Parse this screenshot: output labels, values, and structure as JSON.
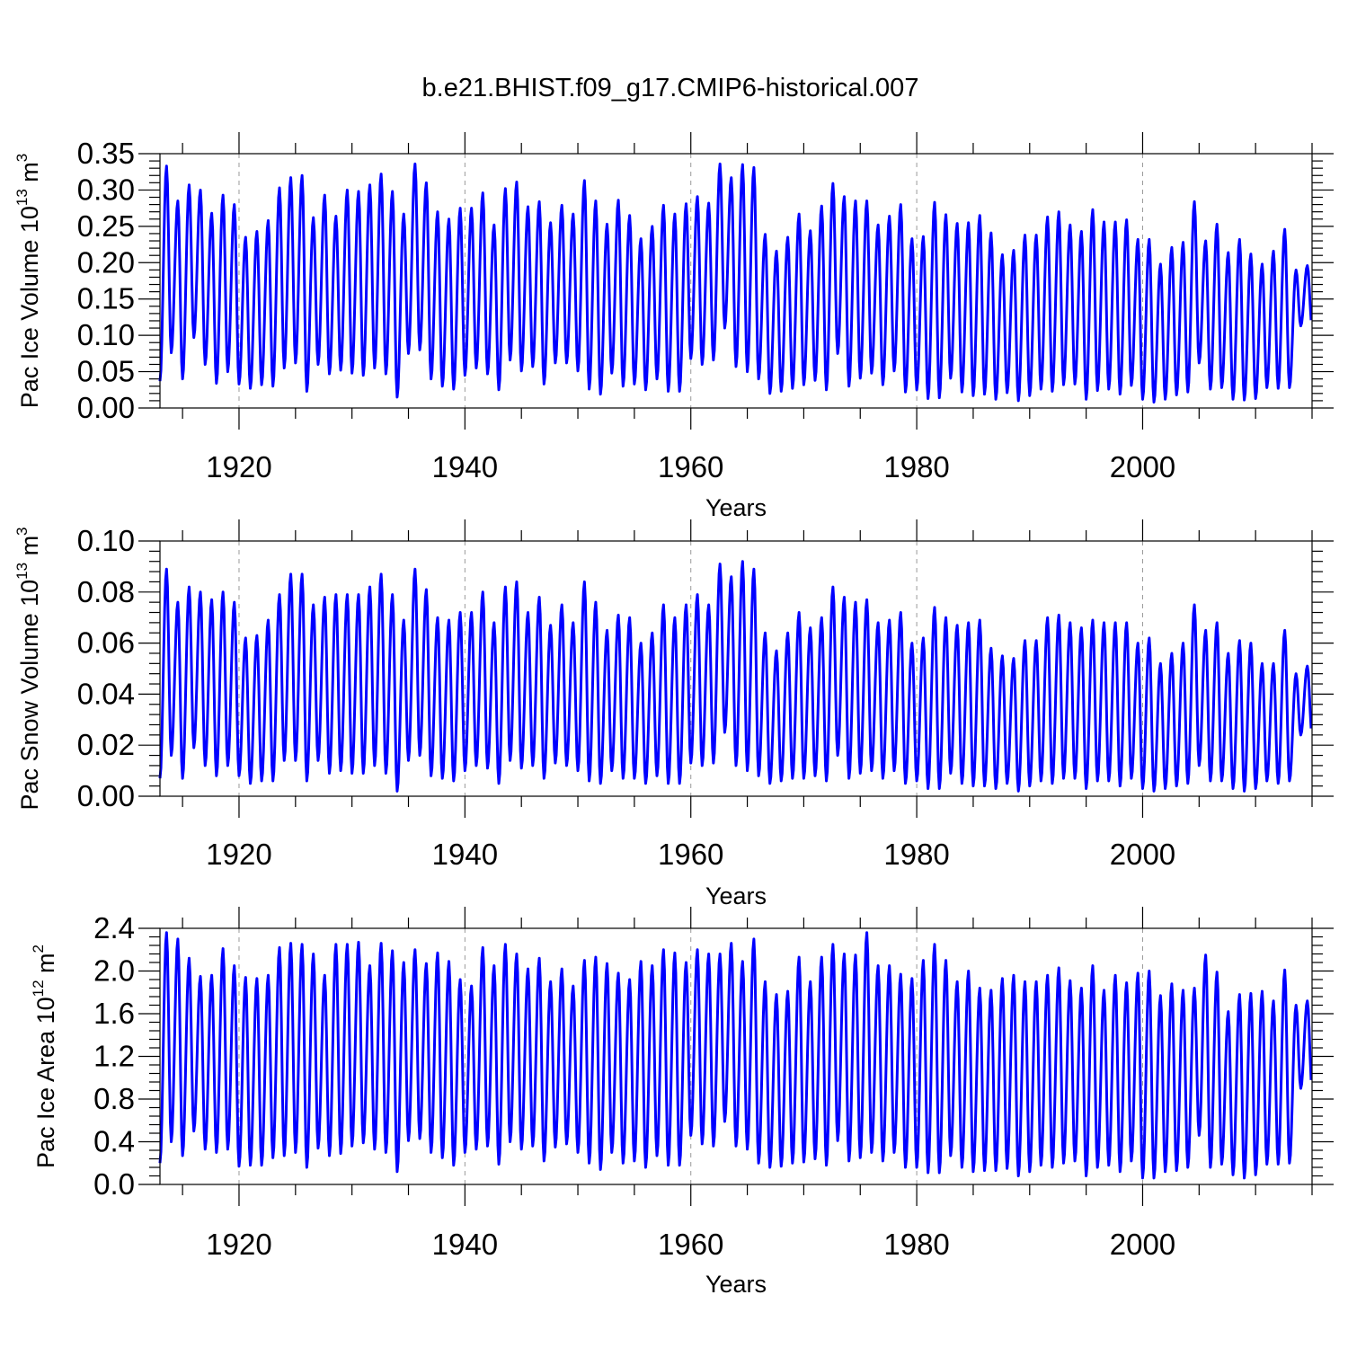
{
  "figure": {
    "title": "b.e21.BHIST.f09_g17.CMIP6-historical.007",
    "line_color": "#0000ff"
  },
  "chart_data": [
    {
      "type": "line",
      "xlabel": "Years",
      "ylabel_base": "Pac Ice Volume 10",
      "ylabel_exp": "13",
      "ylabel_unit": " m",
      "ylabel_unit_exp": "3",
      "xlim": [
        1913,
        2015
      ],
      "ylim": [
        0,
        0.35
      ],
      "xticks": [
        "1920",
        "1940",
        "1960",
        "1980",
        "2000"
      ],
      "yticks": [
        "0.00",
        "0.05",
        "0.10",
        "0.15",
        "0.20",
        "0.25",
        "0.30",
        "0.35"
      ],
      "grid": "dashed vertical at major x ticks",
      "series": [
        {
          "x": [
            1913,
            1914,
            1915,
            1916,
            1917,
            1918,
            1919,
            1920,
            1921,
            1922,
            1923,
            1924,
            1925,
            1926,
            1927,
            1928,
            1929,
            1930,
            1931,
            1932,
            1933,
            1934,
            1935,
            1936,
            1937,
            1938,
            1939,
            1940,
            1941,
            1942,
            1943,
            1944,
            1945,
            1946,
            1947,
            1948,
            1949,
            1950,
            1951,
            1952,
            1953,
            1954,
            1955,
            1956,
            1957,
            1958,
            1959,
            1960,
            1961,
            1962,
            1963,
            1964,
            1965,
            1966,
            1967,
            1968,
            1969,
            1970,
            1971,
            1972,
            1973,
            1974,
            1975,
            1976,
            1977,
            1978,
            1979,
            1980,
            1981,
            1982,
            1983,
            1984,
            1985,
            1986,
            1987,
            1988,
            1989,
            1990,
            1991,
            1992,
            1993,
            1994,
            1995,
            1996,
            1997,
            1998,
            1999,
            2000,
            2001,
            2002,
            2003,
            2004,
            2005,
            2006,
            2007,
            2008,
            2009,
            2010,
            2011,
            2012,
            2013,
            2014
          ],
          "max": [
            0.333,
            0.285,
            0.307,
            0.3,
            0.268,
            0.293,
            0.28,
            0.235,
            0.243,
            0.258,
            0.303,
            0.317,
            0.32,
            0.262,
            0.293,
            0.264,
            0.3,
            0.298,
            0.307,
            0.322,
            0.298,
            0.267,
            0.336,
            0.31,
            0.27,
            0.26,
            0.275,
            0.275,
            0.296,
            0.252,
            0.302,
            0.311,
            0.277,
            0.284,
            0.255,
            0.279,
            0.267,
            0.313,
            0.285,
            0.253,
            0.286,
            0.265,
            0.233,
            0.25,
            0.279,
            0.267,
            0.281,
            0.291,
            0.282,
            0.336,
            0.317,
            0.335,
            0.331,
            0.239,
            0.216,
            0.235,
            0.267,
            0.244,
            0.278,
            0.309,
            0.291,
            0.285,
            0.285,
            0.252,
            0.264,
            0.28,
            0.233,
            0.236,
            0.283,
            0.266,
            0.254,
            0.255,
            0.265,
            0.241,
            0.211,
            0.217,
            0.238,
            0.238,
            0.263,
            0.27,
            0.252,
            0.243,
            0.273,
            0.256,
            0.256,
            0.259,
            0.232,
            0.232,
            0.198,
            0.221,
            0.228,
            0.284,
            0.23,
            0.253,
            0.214,
            0.232,
            0.212,
            0.198,
            0.216,
            0.246,
            0.19,
            0.196
          ],
          "min": [
            0.037,
            0.076,
            0.04,
            0.097,
            0.06,
            0.034,
            0.05,
            0.033,
            0.027,
            0.032,
            0.03,
            0.055,
            0.062,
            0.023,
            0.06,
            0.047,
            0.052,
            0.048,
            0.045,
            0.055,
            0.047,
            0.015,
            0.075,
            0.08,
            0.04,
            0.03,
            0.026,
            0.045,
            0.055,
            0.047,
            0.025,
            0.066,
            0.051,
            0.057,
            0.033,
            0.062,
            0.062,
            0.051,
            0.026,
            0.019,
            0.048,
            0.03,
            0.033,
            0.025,
            0.04,
            0.023,
            0.023,
            0.068,
            0.06,
            0.066,
            0.11,
            0.057,
            0.05,
            0.04,
            0.02,
            0.023,
            0.027,
            0.032,
            0.038,
            0.025,
            0.075,
            0.03,
            0.041,
            0.048,
            0.032,
            0.051,
            0.022,
            0.025,
            0.013,
            0.014,
            0.041,
            0.022,
            0.017,
            0.019,
            0.012,
            0.021,
            0.01,
            0.017,
            0.026,
            0.023,
            0.032,
            0.033,
            0.012,
            0.024,
            0.026,
            0.019,
            0.031,
            0.012,
            0.008,
            0.012,
            0.018,
            0.022,
            0.062,
            0.026,
            0.028,
            0.012,
            0.011,
            0.013,
            0.028,
            0.027,
            0.028,
            0.113
          ]
        }
      ]
    },
    {
      "type": "line",
      "xlabel": "Years",
      "ylabel_base": "Pac Snow Volume 10",
      "ylabel_exp": "13",
      "ylabel_unit": " m",
      "ylabel_unit_exp": "3",
      "xlim": [
        1913,
        2015
      ],
      "ylim": [
        0,
        0.1
      ],
      "xticks": [
        "1920",
        "1940",
        "1960",
        "1980",
        "2000"
      ],
      "yticks": [
        "0.00",
        "0.02",
        "0.04",
        "0.06",
        "0.08",
        "0.10"
      ],
      "grid": "dashed vertical at major x ticks",
      "series": [
        {
          "x": [
            1913,
            1914,
            1915,
            1916,
            1917,
            1918,
            1919,
            1920,
            1921,
            1922,
            1923,
            1924,
            1925,
            1926,
            1927,
            1928,
            1929,
            1930,
            1931,
            1932,
            1933,
            1934,
            1935,
            1936,
            1937,
            1938,
            1939,
            1940,
            1941,
            1942,
            1943,
            1944,
            1945,
            1946,
            1947,
            1948,
            1949,
            1950,
            1951,
            1952,
            1953,
            1954,
            1955,
            1956,
            1957,
            1958,
            1959,
            1960,
            1961,
            1962,
            1963,
            1964,
            1965,
            1966,
            1967,
            1968,
            1969,
            1970,
            1971,
            1972,
            1973,
            1974,
            1975,
            1976,
            1977,
            1978,
            1979,
            1980,
            1981,
            1982,
            1983,
            1984,
            1985,
            1986,
            1987,
            1988,
            1989,
            1990,
            1991,
            1992,
            1993,
            1994,
            1995,
            1996,
            1997,
            1998,
            1999,
            2000,
            2001,
            2002,
            2003,
            2004,
            2005,
            2006,
            2007,
            2008,
            2009,
            2010,
            2011,
            2012,
            2013,
            2014
          ],
          "max": [
            0.089,
            0.076,
            0.082,
            0.08,
            0.077,
            0.08,
            0.076,
            0.062,
            0.063,
            0.069,
            0.079,
            0.087,
            0.087,
            0.075,
            0.078,
            0.079,
            0.079,
            0.079,
            0.082,
            0.087,
            0.079,
            0.069,
            0.089,
            0.081,
            0.07,
            0.069,
            0.072,
            0.072,
            0.08,
            0.068,
            0.082,
            0.084,
            0.072,
            0.078,
            0.067,
            0.075,
            0.068,
            0.084,
            0.076,
            0.065,
            0.071,
            0.07,
            0.06,
            0.064,
            0.075,
            0.07,
            0.075,
            0.079,
            0.075,
            0.091,
            0.086,
            0.092,
            0.089,
            0.064,
            0.057,
            0.064,
            0.072,
            0.066,
            0.07,
            0.082,
            0.078,
            0.076,
            0.077,
            0.068,
            0.069,
            0.072,
            0.06,
            0.062,
            0.074,
            0.07,
            0.067,
            0.068,
            0.069,
            0.058,
            0.055,
            0.054,
            0.061,
            0.061,
            0.07,
            0.071,
            0.068,
            0.066,
            0.069,
            0.068,
            0.068,
            0.068,
            0.06,
            0.062,
            0.052,
            0.056,
            0.06,
            0.075,
            0.065,
            0.068,
            0.056,
            0.061,
            0.06,
            0.052,
            0.052,
            0.065,
            0.048,
            0.051
          ],
          "min": [
            0.007,
            0.016,
            0.007,
            0.019,
            0.012,
            0.008,
            0.012,
            0.008,
            0.005,
            0.006,
            0.006,
            0.014,
            0.014,
            0.006,
            0.014,
            0.009,
            0.01,
            0.009,
            0.009,
            0.012,
            0.009,
            0.002,
            0.014,
            0.016,
            0.008,
            0.007,
            0.006,
            0.01,
            0.012,
            0.011,
            0.005,
            0.014,
            0.011,
            0.012,
            0.007,
            0.013,
            0.012,
            0.01,
            0.006,
            0.005,
            0.01,
            0.007,
            0.007,
            0.005,
            0.008,
            0.005,
            0.005,
            0.013,
            0.012,
            0.013,
            0.025,
            0.012,
            0.01,
            0.008,
            0.005,
            0.006,
            0.007,
            0.007,
            0.008,
            0.006,
            0.016,
            0.007,
            0.009,
            0.01,
            0.007,
            0.01,
            0.005,
            0.006,
            0.003,
            0.003,
            0.009,
            0.005,
            0.004,
            0.004,
            0.003,
            0.005,
            0.002,
            0.004,
            0.006,
            0.005,
            0.007,
            0.007,
            0.003,
            0.006,
            0.006,
            0.004,
            0.007,
            0.003,
            0.002,
            0.003,
            0.004,
            0.005,
            0.012,
            0.006,
            0.006,
            0.003,
            0.002,
            0.003,
            0.006,
            0.005,
            0.006,
            0.024
          ]
        }
      ]
    },
    {
      "type": "line",
      "xlabel": "Years",
      "ylabel_base": "Pac Ice Area 10",
      "ylabel_exp": "12",
      "ylabel_unit": " m",
      "ylabel_unit_exp": "2",
      "xlim": [
        1913,
        2015
      ],
      "ylim": [
        0,
        2.4
      ],
      "xticks": [
        "1920",
        "1940",
        "1960",
        "1980",
        "2000"
      ],
      "yticks": [
        "0.0",
        "0.4",
        "0.8",
        "1.2",
        "1.6",
        "2.0",
        "2.4"
      ],
      "grid": "dashed vertical at major x ticks",
      "series": [
        {
          "x": [
            1913,
            1914,
            1915,
            1916,
            1917,
            1918,
            1919,
            1920,
            1921,
            1922,
            1923,
            1924,
            1925,
            1926,
            1927,
            1928,
            1929,
            1930,
            1931,
            1932,
            1933,
            1934,
            1935,
            1936,
            1937,
            1938,
            1939,
            1940,
            1941,
            1942,
            1943,
            1944,
            1945,
            1946,
            1947,
            1948,
            1949,
            1950,
            1951,
            1952,
            1953,
            1954,
            1955,
            1956,
            1957,
            1958,
            1959,
            1960,
            1961,
            1962,
            1963,
            1964,
            1965,
            1966,
            1967,
            1968,
            1969,
            1970,
            1971,
            1972,
            1973,
            1974,
            1975,
            1976,
            1977,
            1978,
            1979,
            1980,
            1981,
            1982,
            1983,
            1984,
            1985,
            1986,
            1987,
            1988,
            1989,
            1990,
            1991,
            1992,
            1993,
            1994,
            1995,
            1996,
            1997,
            1998,
            1999,
            2000,
            2001,
            2002,
            2003,
            2004,
            2005,
            2006,
            2007,
            2008,
            2009,
            2010,
            2011,
            2012,
            2013,
            2014
          ],
          "max": [
            2.36,
            2.3,
            2.12,
            1.95,
            1.96,
            2.21,
            2.05,
            1.94,
            1.93,
            1.96,
            2.22,
            2.26,
            2.25,
            2.16,
            1.96,
            2.25,
            2.25,
            2.27,
            2.05,
            2.26,
            2.19,
            2.08,
            2.2,
            2.07,
            2.17,
            2.09,
            1.92,
            1.86,
            2.22,
            2.05,
            2.25,
            2.16,
            2.02,
            2.12,
            1.9,
            2.02,
            1.86,
            2.1,
            2.13,
            2.07,
            1.98,
            1.92,
            2.09,
            2.05,
            2.2,
            2.17,
            2.08,
            2.2,
            2.16,
            2.16,
            2.26,
            2.09,
            2.3,
            1.9,
            1.78,
            1.81,
            2.13,
            1.9,
            2.13,
            2.25,
            2.16,
            2.15,
            2.36,
            2.05,
            2.05,
            1.97,
            1.93,
            2.1,
            2.25,
            2.1,
            1.9,
            2.0,
            1.84,
            1.82,
            1.93,
            1.96,
            1.9,
            1.9,
            1.96,
            2.03,
            1.91,
            1.84,
            2.05,
            1.82,
            1.96,
            1.89,
            1.98,
            2.0,
            1.77,
            1.88,
            1.82,
            1.84,
            2.15,
            1.99,
            1.62,
            1.78,
            1.79,
            1.81,
            1.72,
            2.01,
            1.68,
            1.72
          ],
          "min": [
            0.2,
            0.4,
            0.27,
            0.5,
            0.33,
            0.3,
            0.33,
            0.17,
            0.18,
            0.18,
            0.25,
            0.27,
            0.3,
            0.16,
            0.34,
            0.27,
            0.29,
            0.36,
            0.39,
            0.33,
            0.3,
            0.12,
            0.41,
            0.43,
            0.3,
            0.25,
            0.18,
            0.3,
            0.33,
            0.36,
            0.19,
            0.4,
            0.33,
            0.36,
            0.22,
            0.35,
            0.38,
            0.3,
            0.2,
            0.14,
            0.3,
            0.2,
            0.22,
            0.16,
            0.27,
            0.18,
            0.18,
            0.46,
            0.38,
            0.36,
            0.59,
            0.36,
            0.33,
            0.2,
            0.16,
            0.17,
            0.2,
            0.21,
            0.24,
            0.18,
            0.41,
            0.22,
            0.25,
            0.3,
            0.22,
            0.3,
            0.16,
            0.16,
            0.11,
            0.11,
            0.27,
            0.16,
            0.12,
            0.13,
            0.13,
            0.15,
            0.08,
            0.12,
            0.18,
            0.16,
            0.2,
            0.22,
            0.08,
            0.16,
            0.18,
            0.12,
            0.22,
            0.06,
            0.06,
            0.12,
            0.13,
            0.16,
            0.46,
            0.16,
            0.19,
            0.09,
            0.06,
            0.09,
            0.19,
            0.19,
            0.2,
            0.9
          ]
        }
      ]
    }
  ]
}
